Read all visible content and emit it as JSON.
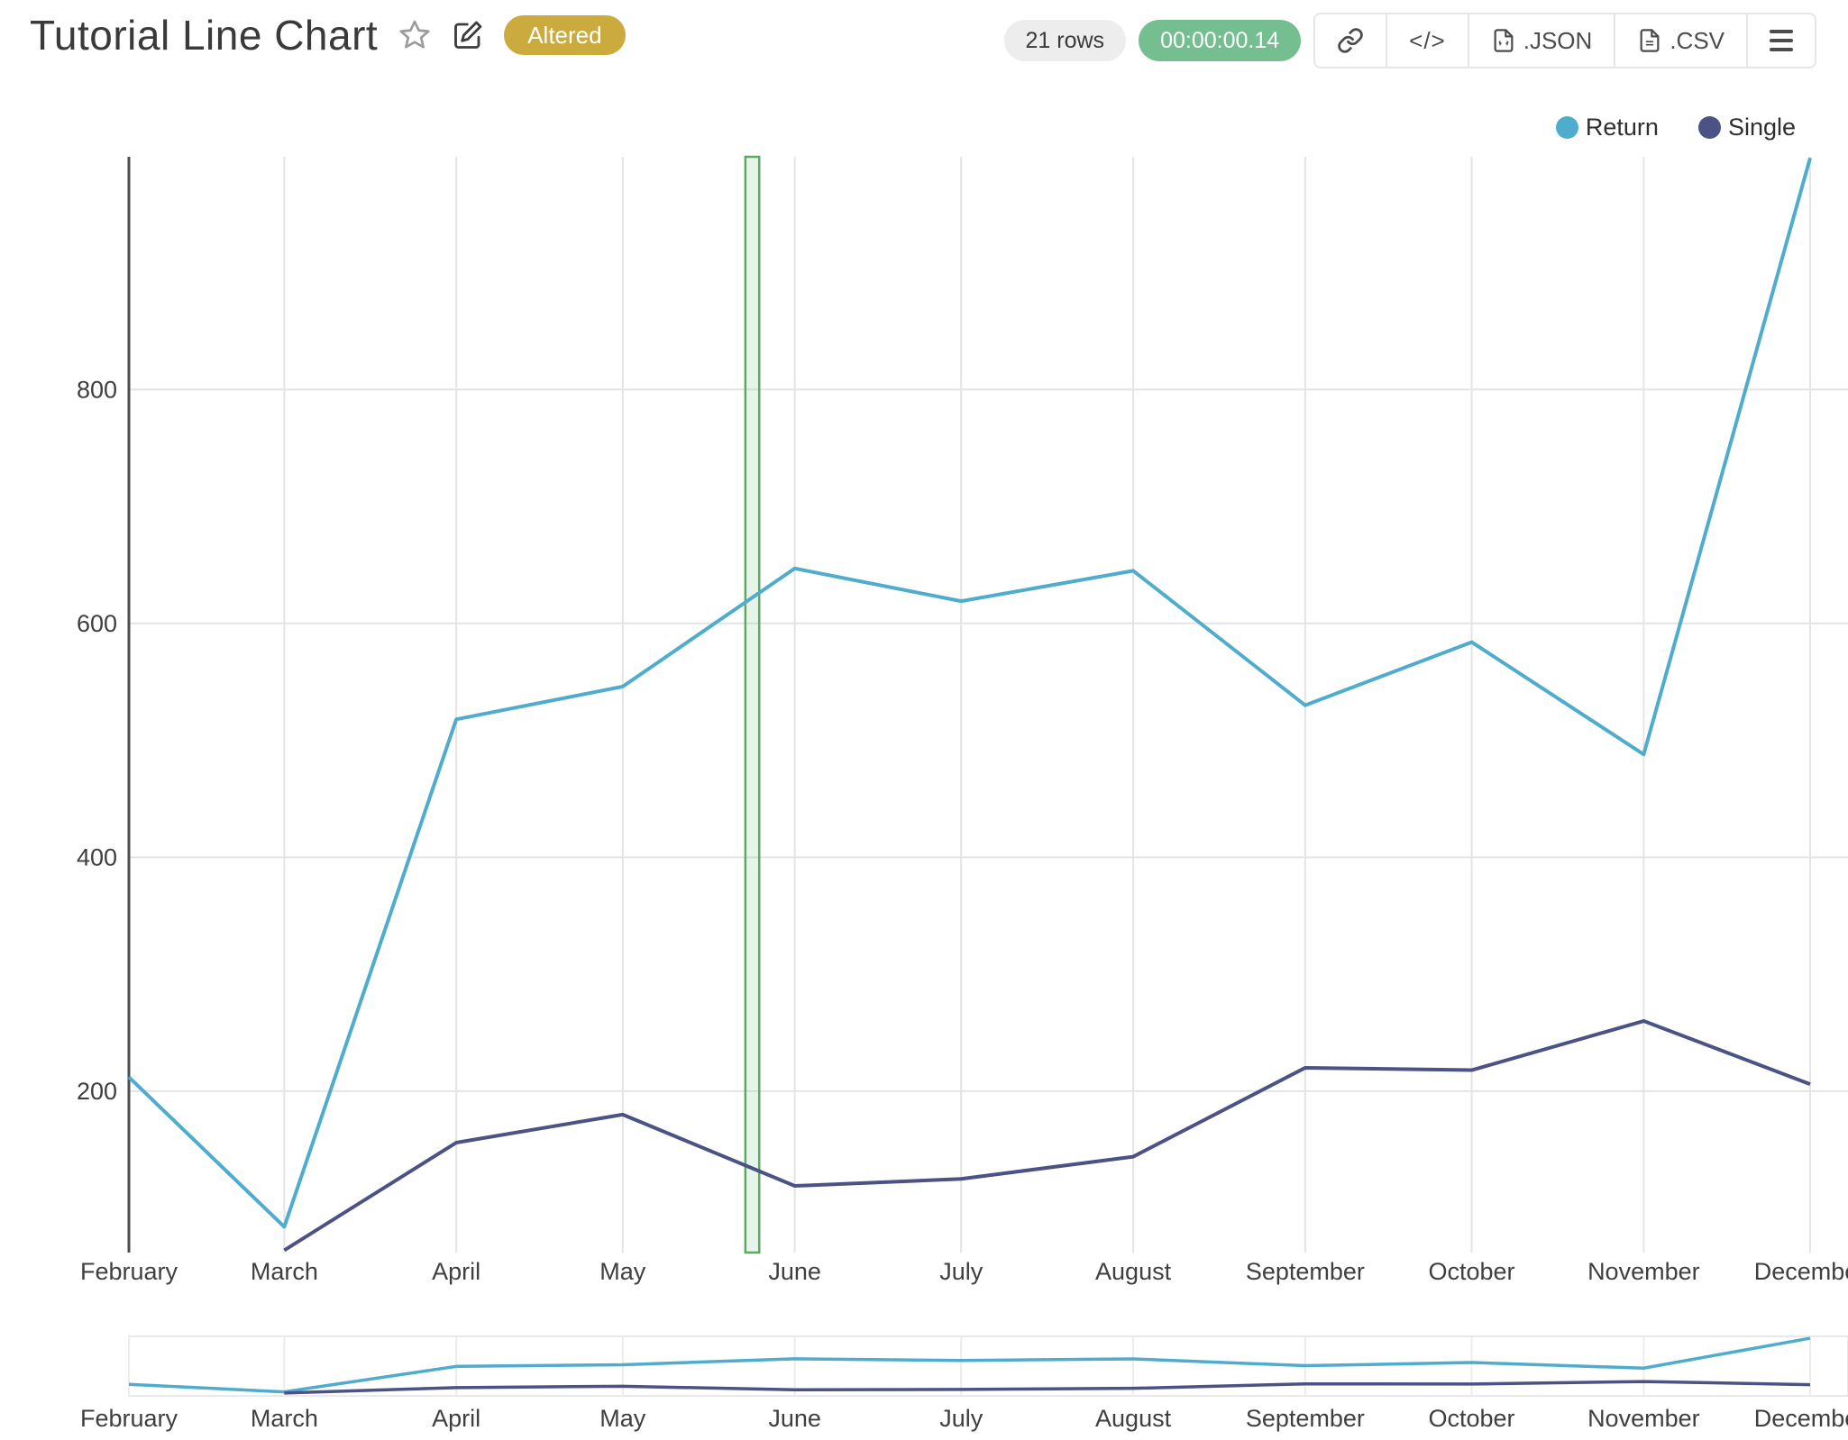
{
  "header": {
    "title": "Tutorial Line Chart",
    "altered_badge": "Altered",
    "rows_badge": "21 rows",
    "timer_badge": "00:00:00.14",
    "code_icon_text": "</>",
    "export_json_label": ".JSON",
    "export_csv_label": ".CSV"
  },
  "legend": {
    "items": [
      {
        "label": "Return",
        "color": "#4faccc"
      },
      {
        "label": "Single",
        "color": "#4a5383"
      }
    ]
  },
  "chart_data": {
    "type": "line",
    "title": "Tutorial Line Chart",
    "x_axis_type": "date",
    "x": [
      "February",
      "March",
      "April",
      "May",
      "June",
      "July",
      "August",
      "September",
      "October",
      "November",
      "December"
    ],
    "x_day_offsets": [
      0,
      28,
      59,
      89,
      120,
      150,
      181,
      212,
      242,
      273,
      303
    ],
    "series": [
      {
        "name": "Return",
        "color": "#4faccc",
        "values": [
          212,
          84,
          518,
          546,
          647,
          619,
          645,
          530,
          584,
          488,
          998
        ]
      },
      {
        "name": "Single",
        "color": "#4a5383",
        "values": [
          null,
          64,
          156,
          180,
          119,
          125,
          144,
          220,
          218,
          260,
          206
        ]
      }
    ],
    "yticks": [
      200,
      400,
      600,
      800
    ],
    "y_domain": [
      62,
      999
    ],
    "grid": true,
    "legend_position": "top-right",
    "rangeslider": true,
    "annotation_band": {
      "x_start_day": 111.1,
      "x_end_day": 113.6,
      "stroke": "#58ac61",
      "fill": "rgba(121,196,134,0.18)"
    }
  },
  "colors": {
    "altered_badge_bg": "#cbab3d",
    "timer_badge_bg": "#74be90",
    "rows_badge_bg": "#ededed",
    "gridline": "#e4e4e4",
    "axis_line": "#4d4d4d",
    "tick_text": "#3f3f3f"
  }
}
